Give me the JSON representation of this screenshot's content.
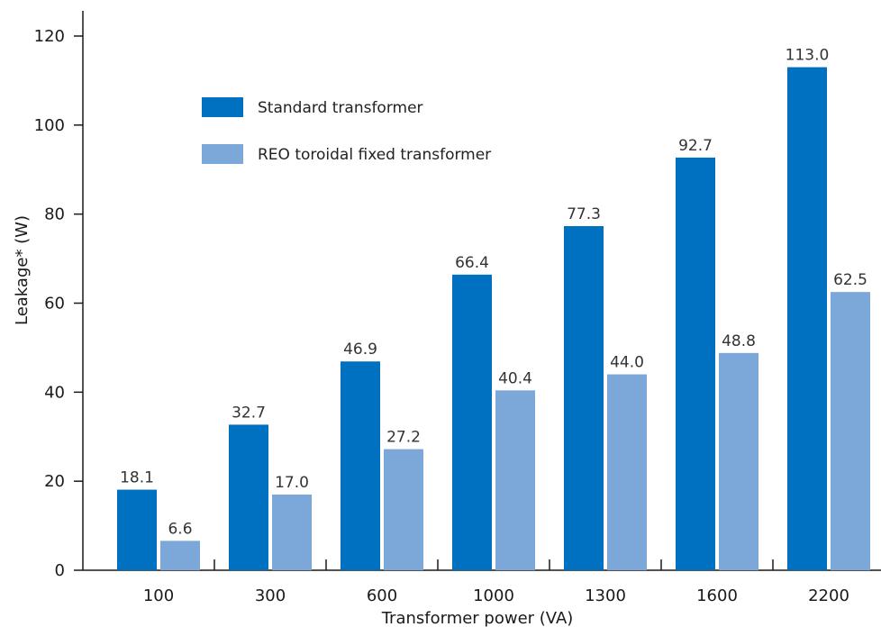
{
  "chart_data": {
    "type": "bar",
    "xlabel": "Transformer power (VA)",
    "ylabel": "Leakage* (W)",
    "ylim": [
      0,
      120
    ],
    "yticks": [
      0,
      20,
      40,
      60,
      80,
      100,
      120
    ],
    "categories": [
      "100",
      "300",
      "600",
      "1000",
      "1300",
      "1600",
      "2200"
    ],
    "series": [
      {
        "name": "Standard transformer",
        "color": "#0070c0",
        "values": [
          18.1,
          32.7,
          46.9,
          66.4,
          77.3,
          92.7,
          113.0
        ],
        "labels": [
          "18.1",
          "32.7",
          "46.9",
          "66.4",
          "77.3",
          "92.7",
          "113.0"
        ]
      },
      {
        "name": "REO toroidal fixed transformer",
        "color": "#7ba7d9",
        "values": [
          6.6,
          17.0,
          27.2,
          40.4,
          44.0,
          48.8,
          62.5
        ],
        "labels": [
          "6.6",
          "17.0",
          "27.2",
          "40.4",
          "44.0",
          "48.8",
          "62.5"
        ]
      }
    ],
    "legend": "top-left",
    "grid": false
  }
}
